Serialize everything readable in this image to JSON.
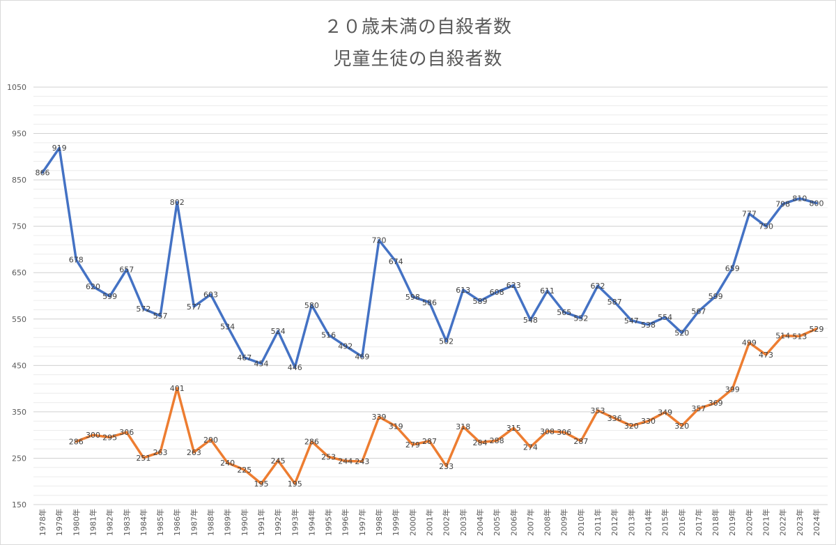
{
  "chart_data": {
    "type": "line",
    "title": "２０歳未満の自殺者数",
    "subtitle": "児童生徒の自殺者数",
    "xlabel": "",
    "ylabel": "",
    "ylim": [
      150,
      1050
    ],
    "yticks": [
      150,
      250,
      350,
      450,
      550,
      650,
      750,
      850,
      950,
      1050
    ],
    "minor_grid_step": 20,
    "grid": true,
    "categories": [
      "1978年",
      "1979年",
      "1980年",
      "1981年",
      "1982年",
      "1983年",
      "1984年",
      "1985年",
      "1986年",
      "1987年",
      "1988年",
      "1989年",
      "1990年",
      "1991年",
      "1992年",
      "1993年",
      "1994年",
      "1995年",
      "1996年",
      "1997年",
      "1998年",
      "1999年",
      "2000年",
      "2001年",
      "2002年",
      "2003年",
      "2004年",
      "2005年",
      "2006年",
      "2007年",
      "2008年",
      "2009年",
      "2010年",
      "2011年",
      "2012年",
      "2013年",
      "2014年",
      "2015年",
      "2016年",
      "2017年",
      "2018年",
      "2019年",
      "2020年",
      "2021年",
      "2022年",
      "2023年",
      "2024年"
    ],
    "series": [
      {
        "color": "#4472c4",
        "values": [
          866,
          919,
          678,
          620,
          599,
          657,
          572,
          557,
          802,
          577,
          603,
          534,
          467,
          454,
          524,
          446,
          580,
          516,
          492,
          469,
          720,
          674,
          598,
          586,
          502,
          613,
          589,
          608,
          623,
          548,
          611,
          565,
          552,
          622,
          587,
          547,
          538,
          554,
          520,
          567,
          599,
          659,
          777,
          750,
          798,
          810,
          800
        ]
      },
      {
        "color": "#ed7d31",
        "values": [
          null,
          null,
          286,
          300,
          295,
          306,
          251,
          263,
          401,
          263,
          290,
          240,
          225,
          195,
          245,
          195,
          286,
          253,
          244,
          243,
          339,
          319,
          279,
          287,
          233,
          318,
          284,
          288,
          315,
          274,
          308,
          306,
          287,
          353,
          336,
          320,
          330,
          349,
          320,
          357,
          369,
          399,
          499,
          473,
          514,
          513,
          529
        ]
      }
    ]
  }
}
